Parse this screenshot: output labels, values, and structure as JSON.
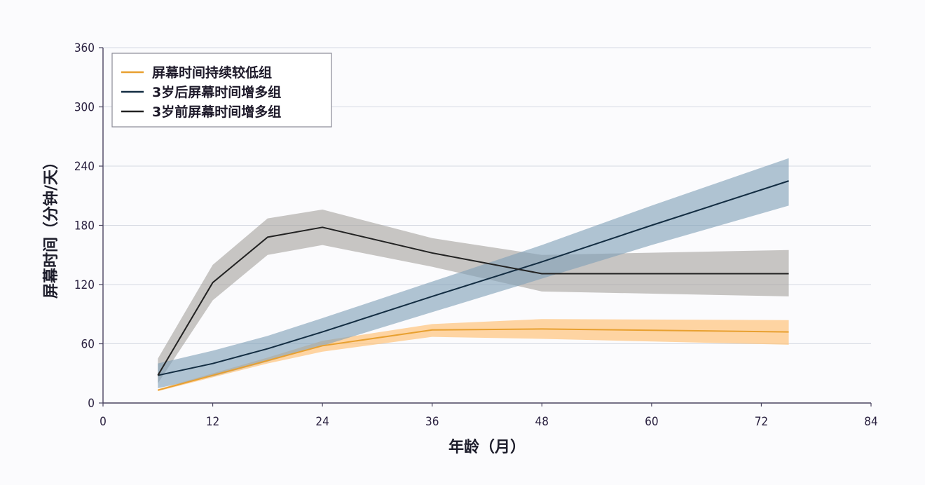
{
  "chart_data": {
    "type": "line",
    "title": "",
    "xlabel": "年龄（月）",
    "ylabel": "屏幕时间（分钟/天）",
    "xlim": [
      0,
      84
    ],
    "ylim": [
      0,
      360
    ],
    "xticks": [
      0,
      12,
      24,
      36,
      48,
      60,
      72,
      84
    ],
    "yticks": [
      0,
      60,
      120,
      180,
      240,
      300,
      360
    ],
    "grid": "horizontal",
    "legend_position": "upper-left",
    "series": [
      {
        "name": "屏幕时间持续较低组",
        "color": "#e8a030",
        "band_color": "#ffc37a",
        "x": [
          6,
          12,
          18,
          24,
          36,
          48,
          75
        ],
        "values": [
          13,
          28,
          43,
          58,
          74,
          75,
          72
        ],
        "lower": [
          12,
          26,
          40,
          52,
          67,
          65,
          59
        ],
        "upper": [
          14,
          30,
          46,
          63,
          80,
          85,
          84
        ]
      },
      {
        "name": "3岁后屏幕时间增多组",
        "color": "#132d42",
        "band_color": "#7f9fb8",
        "x": [
          6,
          12,
          18,
          24,
          36,
          48,
          60,
          75
        ],
        "values": [
          28,
          40,
          55,
          72,
          108,
          143,
          180,
          225
        ],
        "lower": [
          15,
          27,
          42,
          58,
          92,
          126,
          160,
          200
        ],
        "upper": [
          40,
          53,
          68,
          86,
          123,
          160,
          200,
          248
        ]
      },
      {
        "name": "3岁前屏幕时间增多组",
        "color": "#222222",
        "band_color": "#a6a3a0",
        "x": [
          6,
          12,
          18,
          24,
          36,
          48,
          75
        ],
        "values": [
          28,
          122,
          168,
          178,
          152,
          131,
          131
        ],
        "lower": [
          20,
          104,
          150,
          160,
          138,
          113,
          108
        ],
        "upper": [
          45,
          140,
          187,
          196,
          167,
          150,
          155
        ]
      }
    ]
  }
}
